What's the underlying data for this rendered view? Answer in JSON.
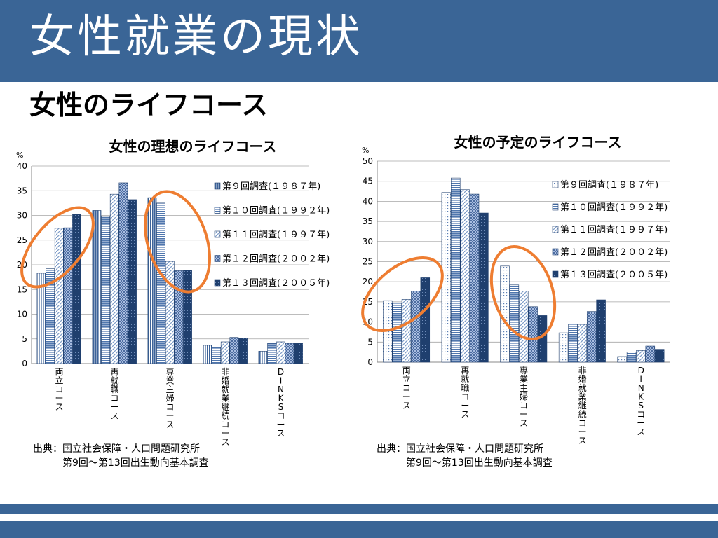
{
  "slide": {
    "title": "女性就業の現状",
    "subtitle": "女性のライフコース"
  },
  "colors": {
    "title_bar": "#3a6596",
    "highlight_ellipse": "#ee7d31",
    "series": [
      "#4a6fa5",
      "#5b7fb5",
      "#7d9cc8",
      "#4d6da0",
      "#1f3f6e"
    ]
  },
  "chart_data": [
    {
      "type": "bar",
      "title": "女性の理想のライフコース",
      "ylabel": "%",
      "ylim": [
        0,
        40
      ],
      "yticks": [
        0,
        5,
        10,
        15,
        20,
        25,
        30,
        35,
        40
      ],
      "categories": [
        "両立コース",
        "再就職コース",
        "専業主婦コース",
        "非婚就業継続コース",
        "DINKSコース"
      ],
      "series": [
        {
          "name": "第９回調査(１９８７年)",
          "values": [
            18.3,
            31.0,
            33.6,
            3.7,
            2.5
          ]
        },
        {
          "name": "第１０回調査(１９９２年)",
          "values": [
            19.2,
            29.8,
            32.5,
            3.3,
            4.1
          ]
        },
        {
          "name": "第１１回調査(１９９７年)",
          "values": [
            27.4,
            34.3,
            20.7,
            4.4,
            4.4
          ]
        },
        {
          "name": "第１２回調査(２００２年)",
          "values": [
            27.5,
            36.6,
            18.8,
            5.3,
            4.1
          ]
        },
        {
          "name": "第１３回調査(２００５年)",
          "values": [
            30.2,
            33.2,
            18.9,
            5.1,
            4.1
          ]
        }
      ],
      "grid": true,
      "legend": "right"
    },
    {
      "type": "bar",
      "title": "女性の予定のライフコース",
      "ylabel": "%",
      "ylim": [
        0,
        50
      ],
      "yticks": [
        0,
        5,
        10,
        15,
        20,
        25,
        30,
        35,
        40,
        45,
        50
      ],
      "categories": [
        "両立コース",
        "再就職コース",
        "専業主婦コース",
        "非婚就業継続コース",
        "DINKSコース"
      ],
      "series": [
        {
          "name": "第９回調査(１９８７年)",
          "values": [
            15.3,
            42.2,
            23.9,
            7.3,
            1.4
          ]
        },
        {
          "name": "第１０回調査(１９９２年)",
          "values": [
            14.7,
            45.8,
            19.2,
            9.5,
            2.5
          ]
        },
        {
          "name": "第１１回調査(１９９７年)",
          "values": [
            15.6,
            42.9,
            17.7,
            9.4,
            2.9
          ]
        },
        {
          "name": "第１２回調査(２００２年)",
          "values": [
            17.7,
            41.8,
            13.8,
            12.6,
            4.0
          ]
        },
        {
          "name": "第１３回調査(２００５年)",
          "values": [
            21.0,
            37.1,
            11.6,
            15.5,
            3.2
          ]
        }
      ],
      "grid": true,
      "legend": "right"
    }
  ],
  "sources": [
    {
      "line1": "出典：国立社会保障・人口問題研究所",
      "line2": "第9回～第13回出生動向基本調査"
    },
    {
      "line1": "出典：国立社会保障・人口問題研究所",
      "line2": "第9回～第13回出生動向基本調査"
    }
  ]
}
